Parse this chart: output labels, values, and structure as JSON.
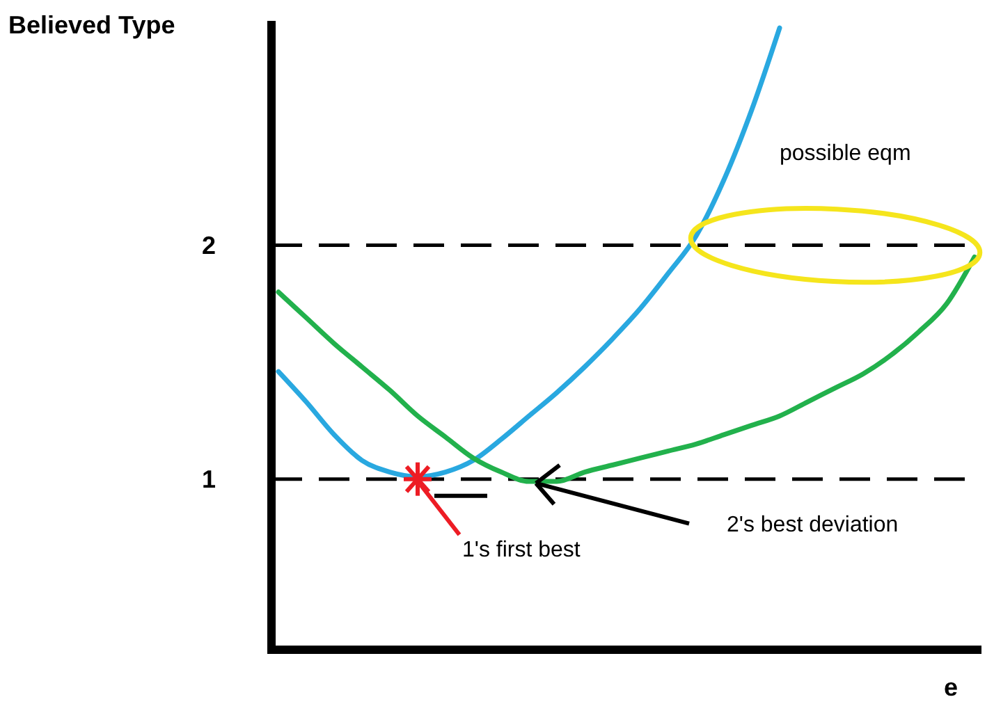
{
  "chart_data": {
    "type": "line",
    "ylabel": "Believed Type",
    "xlabel": "e",
    "categories": [
      null,
      null,
      null,
      null,
      null,
      null,
      null,
      null,
      null,
      null,
      null,
      null,
      null,
      null,
      null,
      null,
      null,
      null,
      null,
      null,
      null,
      null,
      null,
      null,
      null,
      null
    ],
    "series": [
      {
        "color": "#29a8e0",
        "values": [
          1.46,
          1.33,
          1.19,
          1.08,
          1.03,
          1.01,
          1.03,
          1.08,
          1.17,
          1.27,
          1.37,
          1.48,
          1.6,
          1.73,
          1.88,
          2.04,
          2.28,
          2.58,
          2.93,
          null,
          null,
          null,
          null,
          null,
          null,
          null
        ]
      },
      {
        "color": "#22b14c",
        "values": [
          1.8,
          1.69,
          1.58,
          1.48,
          1.38,
          1.27,
          1.18,
          1.09,
          1.03,
          0.99,
          0.99,
          1.03,
          1.06,
          1.09,
          1.12,
          1.15,
          1.19,
          1.23,
          1.27,
          1.33,
          1.39,
          1.45,
          1.53,
          1.63,
          1.75,
          1.95
        ]
      }
    ],
    "ylim": [
      0.27,
      2.96
    ],
    "yticks": [
      1,
      2
    ],
    "tick_labels": "y",
    "grid": false,
    "line_style": "solid",
    "ref_lines": [
      {
        "axis": "y",
        "value": 2,
        "label": null,
        "color": "#000000",
        "line_style": "dashed"
      },
      {
        "axis": "y",
        "value": 1,
        "label": null,
        "color": "#000000",
        "line_style": "dashed"
      }
    ],
    "annotations": [
      "possible eqm",
      "1's first best",
      "2's best deviation"
    ]
  }
}
